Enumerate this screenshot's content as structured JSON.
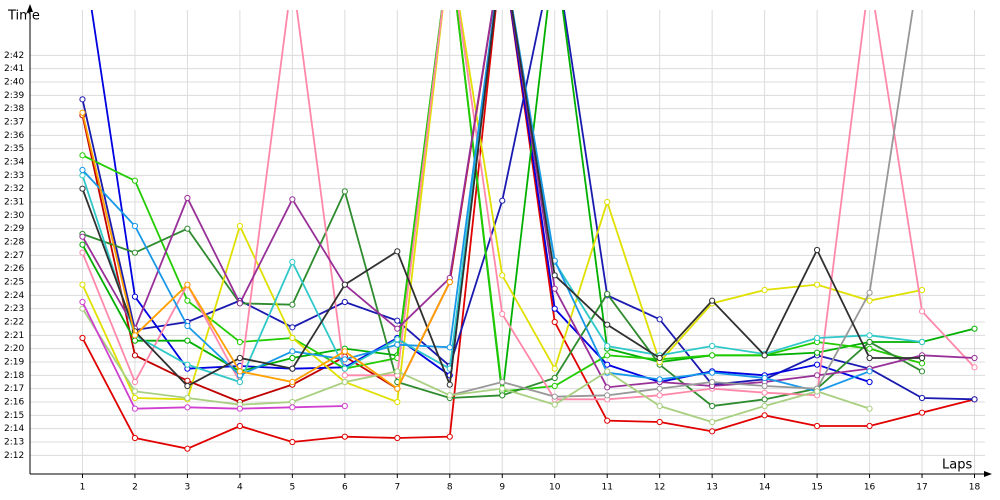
{
  "chart_data": {
    "type": "line",
    "x_label": "Laps",
    "y_label": "Time",
    "x": [
      1,
      2,
      3,
      4,
      5,
      6,
      7,
      8,
      9,
      10,
      11,
      12,
      13,
      14,
      15,
      16,
      17,
      18
    ],
    "xlim": [
      0,
      18.2
    ],
    "xticks": [
      1,
      2,
      3,
      4,
      5,
      6,
      7,
      8,
      9,
      10,
      11,
      12,
      13,
      14,
      15,
      16,
      17,
      18
    ],
    "ylim": [
      130.6,
      165.4
    ],
    "yticks": [
      {
        "value": 132,
        "label": "2:12"
      },
      {
        "value": 133,
        "label": "2:13"
      },
      {
        "value": 134,
        "label": "2:14"
      },
      {
        "value": 135,
        "label": "2:15"
      },
      {
        "value": 136,
        "label": "2:16"
      },
      {
        "value": 137,
        "label": "2:17"
      },
      {
        "value": 138,
        "label": "2:18"
      },
      {
        "value": 139,
        "label": "2:19"
      },
      {
        "value": 140,
        "label": "2:20"
      },
      {
        "value": 141,
        "label": "2:21"
      },
      {
        "value": 142,
        "label": "2:22"
      },
      {
        "value": 143,
        "label": "2:23"
      },
      {
        "value": 144,
        "label": "2:24"
      },
      {
        "value": 145,
        "label": "2:25"
      },
      {
        "value": 146,
        "label": "2:26"
      },
      {
        "value": 147,
        "label": "2:27"
      },
      {
        "value": 148,
        "label": "2:28"
      },
      {
        "value": 149,
        "label": "2:29"
      },
      {
        "value": 150,
        "label": "2:30"
      },
      {
        "value": 151,
        "label": "2:31"
      },
      {
        "value": 152,
        "label": "2:32"
      },
      {
        "value": 153,
        "label": "2:33"
      },
      {
        "value": 154,
        "label": "2:34"
      },
      {
        "value": 155,
        "label": "2:35"
      },
      {
        "value": 156,
        "label": "2:36"
      },
      {
        "value": 157,
        "label": "2:37"
      },
      {
        "value": 158,
        "label": "2:38"
      },
      {
        "value": 159,
        "label": "2:39"
      },
      {
        "value": 160,
        "label": "2:40"
      },
      {
        "value": 161,
        "label": "2:41"
      },
      {
        "value": 162,
        "label": "2:42"
      }
    ],
    "grid": true,
    "series": [
      {
        "color": "#e00000",
        "values": [
          140.8,
          133.3,
          132.5,
          134.2,
          133,
          133.4,
          133.3,
          133.4,
          170,
          142,
          134.6,
          134.5,
          133.8,
          135,
          134.2,
          134.2,
          135.2,
          136.2
        ]
      },
      {
        "color": "#c00000",
        "values": [
          157.5,
          139.5,
          137.6,
          136,
          137.3,
          139.4,
          137,
          145,
          170,
          null,
          null,
          null,
          null,
          null,
          null,
          null,
          null,
          null
        ]
      },
      {
        "color": "#1a1ab0",
        "values": [
          158.7,
          141.4,
          142,
          143.6,
          141.6,
          143.5,
          142.1,
          138.7,
          151.1,
          170,
          144,
          142.2,
          137.3,
          137.7,
          139.5,
          138.5,
          136.3,
          136.2
        ]
      },
      {
        "color": "#0000e0",
        "values": [
          170,
          143.9,
          138.5,
          138.7,
          138.5,
          138.6,
          140.8,
          138,
          170,
          143,
          138.8,
          137.5,
          138.3,
          138,
          138.8,
          137.5,
          null,
          null
        ]
      },
      {
        "color": "#00b000",
        "values": [
          147.8,
          140.6,
          140.6,
          138.3,
          139.3,
          140,
          139.5,
          170,
          136.5,
          170,
          140,
          139,
          139.5,
          139.5,
          139.7,
          140.5,
          140.5,
          141.5
        ]
      },
      {
        "color": "#22cc00",
        "values": [
          154.5,
          152.6,
          143.6,
          140.5,
          140.8,
          138.5,
          139.3,
          170,
          136.8,
          137.2,
          139.5,
          139.2,
          139.5,
          139.5,
          140.5,
          140,
          138.9,
          null
        ]
      },
      {
        "color": "#2e8b2e",
        "values": [
          148.6,
          147.2,
          149,
          143.4,
          143.3,
          151.8,
          137.5,
          136.3,
          136.5,
          137.8,
          144.1,
          138.8,
          135.7,
          136.2,
          137,
          140.5,
          138.3,
          null
        ]
      },
      {
        "color": "#e0e000",
        "values": [
          144.8,
          136.3,
          136.2,
          149.2,
          140.8,
          137.5,
          136,
          170,
          145.5,
          138.5,
          151,
          139,
          143.4,
          144.4,
          144.8,
          143.6,
          144.4,
          null
        ]
      },
      {
        "color": "#ff88aa",
        "values": [
          147.2,
          137.5,
          144.8,
          137.5,
          168,
          138,
          138,
          170,
          142.6,
          136.2,
          136.2,
          136.5,
          137,
          136.7,
          136.5,
          168,
          142.8,
          138.6
        ]
      },
      {
        "color": "#983098",
        "values": [
          148.4,
          141.5,
          151.3,
          143.4,
          151.2,
          144.8,
          141.5,
          145.3,
          170,
          144.5,
          137.1,
          137.5,
          137.2,
          137.5,
          138,
          138.5,
          139.5,
          139.3
        ]
      },
      {
        "color": "#30c8c8",
        "values": [
          153,
          141,
          138.8,
          137.5,
          146.5,
          138.5,
          140.7,
          138.5,
          170,
          146.5,
          140.2,
          139.5,
          140.2,
          139.6,
          140.8,
          141,
          140.5,
          null
        ]
      },
      {
        "color": "#1898e8",
        "values": [
          153.4,
          149.2,
          141.7,
          138,
          139.8,
          139.2,
          140.3,
          140.1,
          170,
          146.6,
          138.2,
          137.7,
          138.2,
          137.8,
          136.8,
          138.3,
          null,
          null
        ]
      },
      {
        "color": "#989898",
        "values": [
          null,
          null,
          null,
          null,
          null,
          null,
          null,
          136.5,
          137.5,
          136.4,
          136.5,
          137,
          137.5,
          137.2,
          137,
          144.2,
          170,
          null
        ]
      },
      {
        "color": "#303030",
        "values": [
          152,
          141.3,
          137.2,
          139.3,
          138.5,
          144.8,
          147.3,
          137.3,
          170,
          145.5,
          141.8,
          139.3,
          143.6,
          139.5,
          147.4,
          139.3,
          139.3,
          null
        ]
      },
      {
        "color": "#a8d080",
        "values": [
          143,
          136.8,
          136.3,
          135.8,
          136,
          137.5,
          138.3,
          136.5,
          137,
          135.8,
          138.3,
          135.7,
          134.5,
          135.7,
          136.8,
          135.5,
          null,
          null
        ]
      },
      {
        "color": "#d040d0",
        "values": [
          143.5,
          135.5,
          135.6,
          135.5,
          135.6,
          135.7,
          null,
          null,
          null,
          null,
          null,
          null,
          null,
          null,
          null,
          null,
          null,
          null
        ]
      },
      {
        "color": "#ffa000",
        "values": [
          157.7,
          141,
          144.8,
          138.3,
          137.5,
          139.8,
          137,
          145,
          null,
          null,
          null,
          null,
          null,
          null,
          null,
          null,
          null,
          null
        ]
      }
    ]
  }
}
